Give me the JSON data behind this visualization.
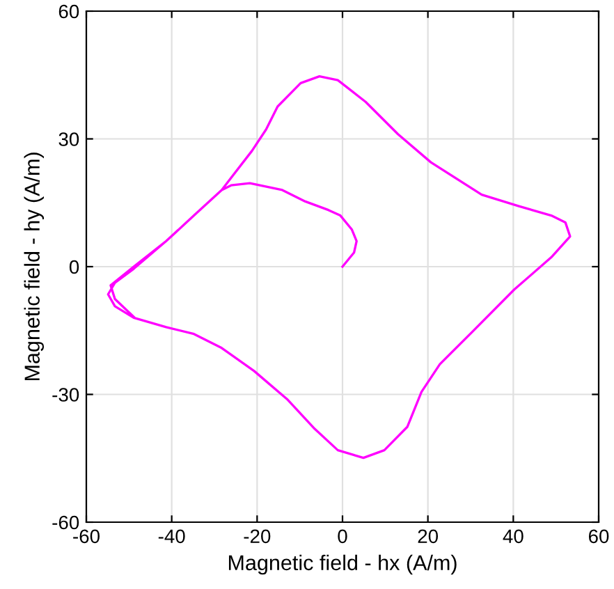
{
  "chart_data": {
    "type": "line",
    "xlabel": "Magnetic field - hx (A/m)",
    "ylabel": "Magnetic field - hy (A/m)",
    "xlim": [
      -60,
      60
    ],
    "xticks": [
      -60,
      -40,
      -20,
      0,
      20,
      40,
      60
    ],
    "ylim": [
      -60,
      60
    ],
    "yticks": [
      -60,
      -30,
      0,
      30,
      60
    ],
    "grid": true,
    "marker": "none",
    "line_style": "solid",
    "x": [
      0,
      2.7,
      3.3,
      2.2,
      -0.5,
      -3.3,
      -8.7,
      -14.1,
      -21.7,
      -26.1,
      -28.3,
      -34.8,
      -41.3,
      -48.9,
      -53.3,
      -54.9,
      -53.3,
      -48.9,
      -41.3,
      -34.8,
      -28.3,
      -20.7,
      -13,
      -6.5,
      -1.1,
      4.9,
      9.8,
      15.2,
      18.5,
      22.8,
      30.4,
      40.2,
      48.9,
      53.3,
      52.2,
      48.9,
      41.3,
      32.6,
      20.7,
      13,
      5.4,
      -1.1,
      -5.4,
      -9.8,
      -15.2,
      -17.9,
      -21.2,
      -28.3,
      -34.8,
      -41.3,
      -48.9,
      -54.3,
      -53.3,
      -48.9
    ],
    "series": [
      {
        "color": "#ff00ff",
        "values": [
          0,
          3.3,
          6.0,
          8.7,
          12,
          13.3,
          15.3,
          18.0,
          19.6,
          19.1,
          18,
          12,
          6.0,
          -0.5,
          -3.8,
          -6.5,
          -9.3,
          -12,
          -14.2,
          -15.8,
          -19.1,
          -24.5,
          -31.1,
          -38.1,
          -43.1,
          -44.9,
          -43.1,
          -37.6,
          -29.4,
          -22.9,
          -15.3,
          -5.4,
          2.2,
          7.1,
          10.4,
          12,
          14.2,
          16.9,
          24.5,
          31.1,
          38.7,
          43.8,
          44.7,
          43.1,
          37.6,
          32.2,
          27.2,
          18,
          12,
          6,
          0,
          -4.4,
          -7.6,
          -11.8
        ]
      }
    ]
  }
}
